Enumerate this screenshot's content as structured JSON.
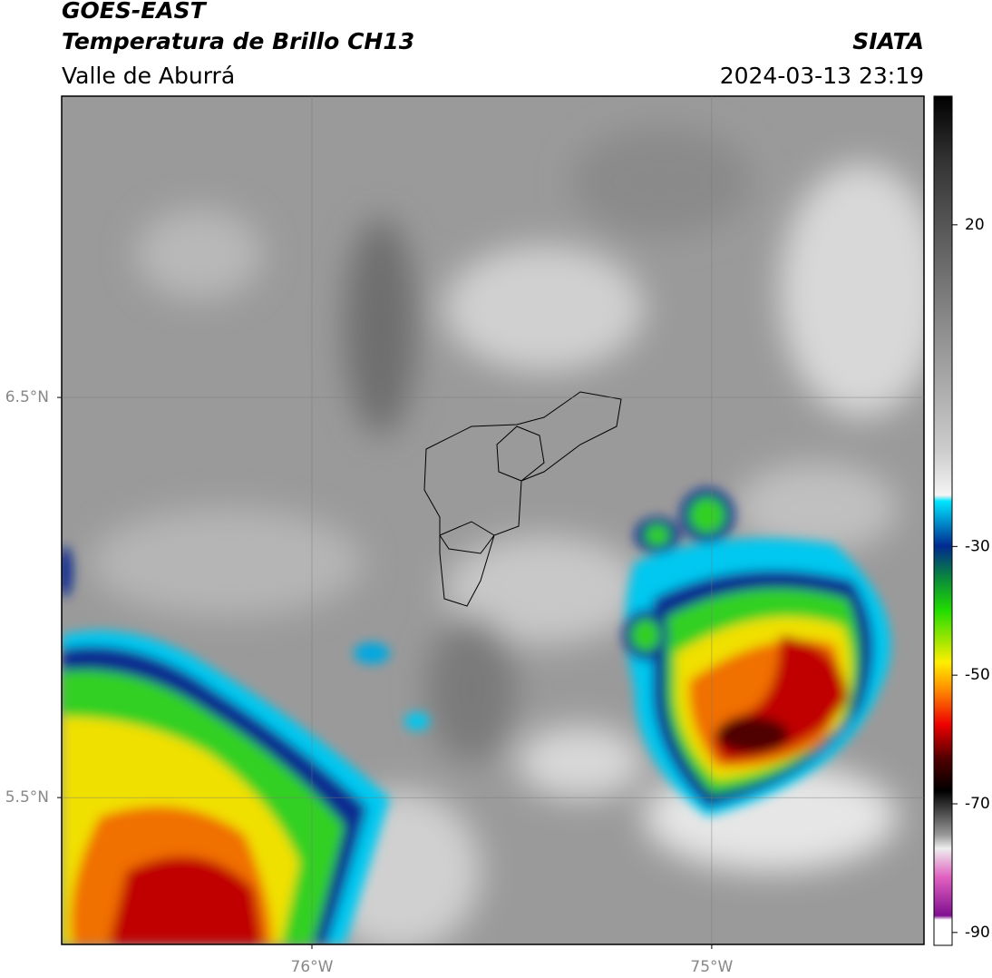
{
  "header": {
    "satellite": "GOES-EAST",
    "product": "Temperatura de Brillo CH13",
    "region": "Valle de Aburrá",
    "source": "SIATA",
    "datetime": "2024-03-13 23:19"
  },
  "map": {
    "xlim": [
      -76.626,
      -74.469
    ],
    "ylim": [
      5.133,
      7.253
    ],
    "xticks": [
      {
        "value": -76,
        "label": "76°W"
      },
      {
        "value": -75,
        "label": "75°W"
      }
    ],
    "yticks": [
      {
        "value": 6.5,
        "label": "6.5°N"
      },
      {
        "value": 5.5,
        "label": "5.5°N"
      }
    ]
  },
  "colorbar": {
    "ylim": [
      -92,
      40
    ],
    "yticks": [
      20,
      -30,
      -50,
      -70,
      -90
    ]
  }
}
